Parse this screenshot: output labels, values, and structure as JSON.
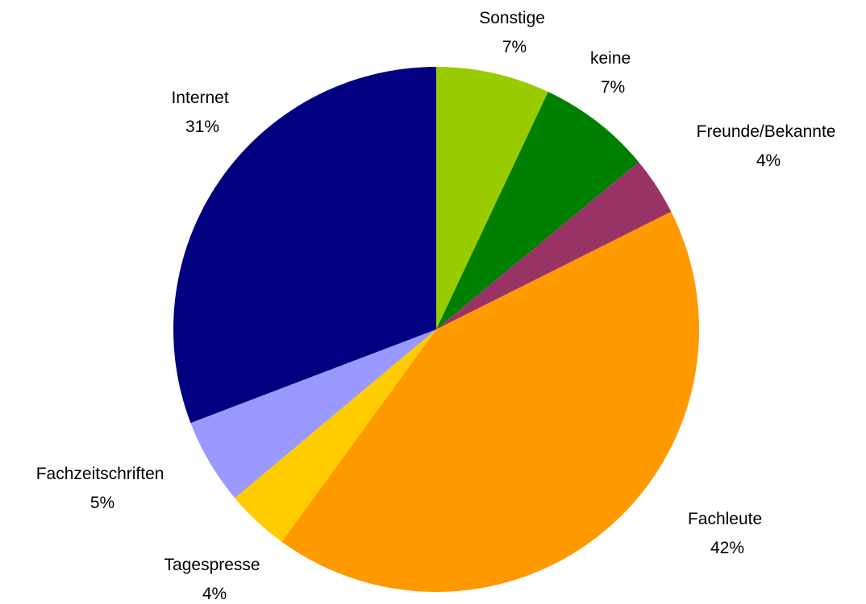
{
  "chart_data": {
    "type": "pie",
    "title": "",
    "slices": [
      {
        "label": "Sonstige",
        "value_label": "7%",
        "value": 7,
        "color": "#99cc00"
      },
      {
        "label": "keine",
        "value_label": "7%",
        "value": 7,
        "color": "#008000"
      },
      {
        "label": "Freunde/Bekannte",
        "value_label": "4%",
        "value": 3.6,
        "color": "#993366"
      },
      {
        "label": "Fachleute",
        "value_label": "42%",
        "value": 42.4,
        "color": "#ff9900"
      },
      {
        "label": "Tagespresse",
        "value_label": "4%",
        "value": 3.9,
        "color": "#ffcc00"
      },
      {
        "label": "Fachzeitschriften",
        "value_label": "5%",
        "value": 5.3,
        "color": "#9999ff"
      },
      {
        "label": "Internet",
        "value_label": "31%",
        "value": 30.8,
        "color": "#000080"
      }
    ],
    "start_direction": "12 o'clock, clockwise",
    "legend": "none",
    "data_labels": "outside, category name above percentage"
  }
}
